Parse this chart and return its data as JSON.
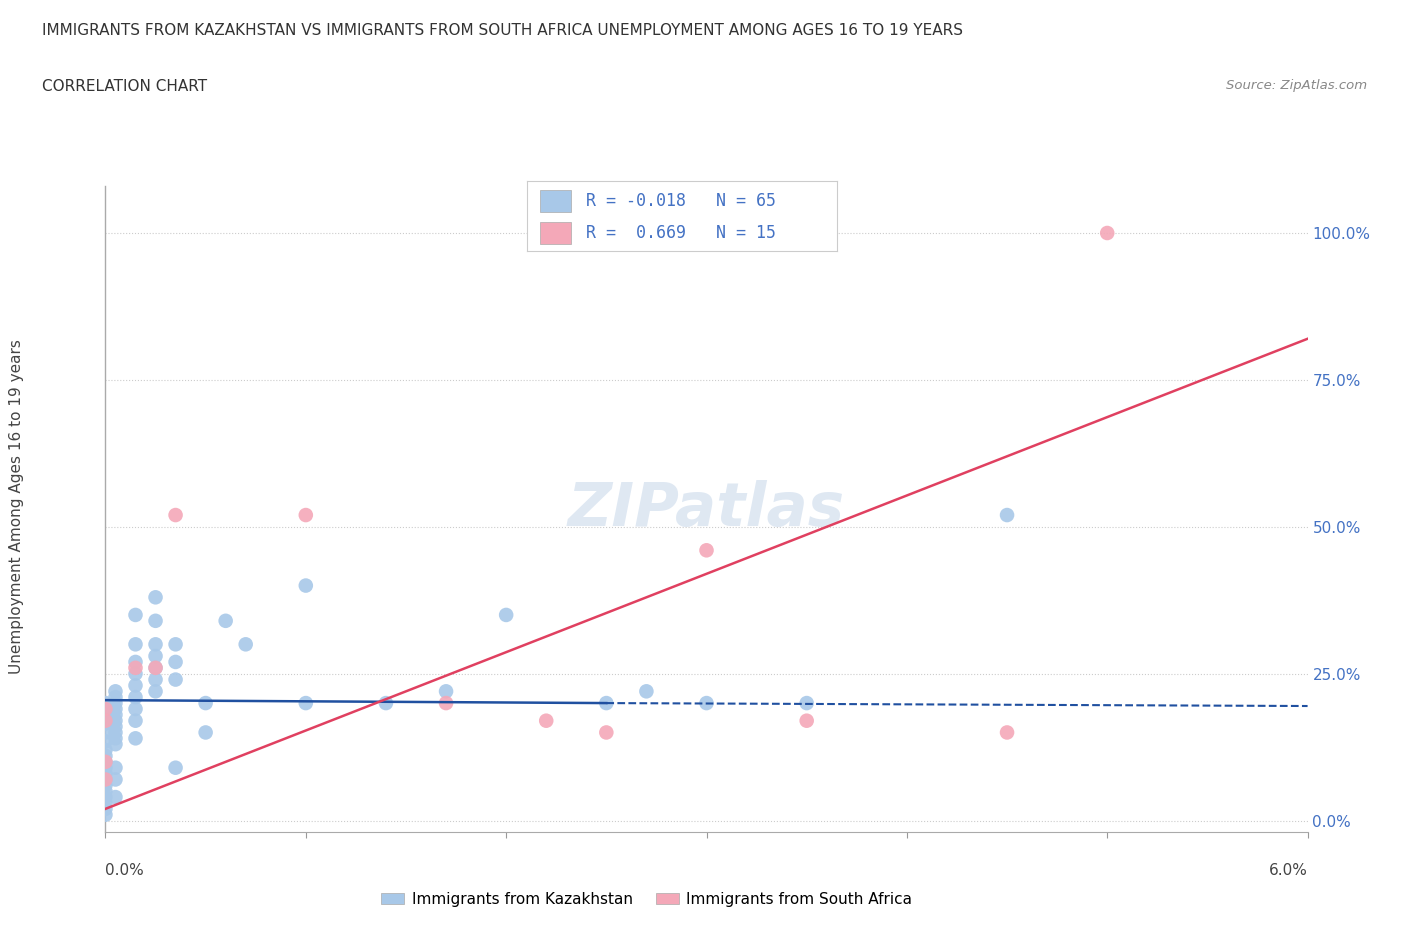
{
  "title_line1": "IMMIGRANTS FROM KAZAKHSTAN VS IMMIGRANTS FROM SOUTH AFRICA UNEMPLOYMENT AMONG AGES 16 TO 19 YEARS",
  "title_line2": "CORRELATION CHART",
  "source": "Source: ZipAtlas.com",
  "ylabel": "Unemployment Among Ages 16 to 19 years",
  "y_right_labels": [
    "0.0%",
    "25.0%",
    "50.0%",
    "75.0%",
    "100.0%"
  ],
  "xlim": [
    0.0,
    6.0
  ],
  "ylim": [
    -2.0,
    108.0
  ],
  "kaz_color": "#a8c8e8",
  "sa_color": "#f4a8b8",
  "kaz_line_color": "#2050a0",
  "sa_line_color": "#e04060",
  "background_color": "#ffffff",
  "kaz_scatter": [
    [
      0.0,
      20.0
    ],
    [
      0.0,
      18.0
    ],
    [
      0.0,
      16.5
    ],
    [
      0.0,
      15.0
    ],
    [
      0.0,
      13.5
    ],
    [
      0.0,
      12.0
    ],
    [
      0.0,
      11.0
    ],
    [
      0.0,
      10.0
    ],
    [
      0.0,
      9.0
    ],
    [
      0.0,
      8.0
    ],
    [
      0.0,
      7.0
    ],
    [
      0.0,
      6.0
    ],
    [
      0.0,
      5.0
    ],
    [
      0.0,
      4.0
    ],
    [
      0.0,
      3.0
    ],
    [
      0.0,
      2.0
    ],
    [
      0.0,
      1.0
    ],
    [
      0.05,
      22.0
    ],
    [
      0.05,
      21.0
    ],
    [
      0.05,
      20.0
    ],
    [
      0.05,
      19.0
    ],
    [
      0.05,
      18.0
    ],
    [
      0.05,
      17.0
    ],
    [
      0.05,
      16.0
    ],
    [
      0.05,
      15.0
    ],
    [
      0.05,
      14.0
    ],
    [
      0.05,
      13.0
    ],
    [
      0.05,
      9.0
    ],
    [
      0.05,
      7.0
    ],
    [
      0.05,
      4.0
    ],
    [
      0.15,
      35.0
    ],
    [
      0.15,
      30.0
    ],
    [
      0.15,
      27.0
    ],
    [
      0.15,
      25.0
    ],
    [
      0.15,
      23.0
    ],
    [
      0.15,
      21.0
    ],
    [
      0.15,
      19.0
    ],
    [
      0.15,
      17.0
    ],
    [
      0.15,
      14.0
    ],
    [
      0.25,
      38.0
    ],
    [
      0.25,
      34.0
    ],
    [
      0.25,
      30.0
    ],
    [
      0.25,
      28.0
    ],
    [
      0.25,
      26.0
    ],
    [
      0.25,
      24.0
    ],
    [
      0.25,
      22.0
    ],
    [
      0.35,
      30.0
    ],
    [
      0.35,
      27.0
    ],
    [
      0.35,
      24.0
    ],
    [
      0.35,
      9.0
    ],
    [
      0.5,
      20.0
    ],
    [
      0.5,
      15.0
    ],
    [
      0.6,
      34.0
    ],
    [
      0.7,
      30.0
    ],
    [
      1.0,
      40.0
    ],
    [
      1.0,
      20.0
    ],
    [
      1.4,
      20.0
    ],
    [
      1.7,
      22.0
    ],
    [
      2.0,
      35.0
    ],
    [
      2.5,
      20.0
    ],
    [
      2.7,
      22.0
    ],
    [
      3.0,
      20.0
    ],
    [
      3.5,
      20.0
    ],
    [
      4.5,
      52.0
    ]
  ],
  "sa_scatter": [
    [
      0.0,
      19.0
    ],
    [
      0.0,
      17.0
    ],
    [
      0.0,
      10.0
    ],
    [
      0.0,
      7.0
    ],
    [
      0.15,
      26.0
    ],
    [
      0.25,
      26.0
    ],
    [
      0.35,
      52.0
    ],
    [
      1.0,
      52.0
    ],
    [
      1.7,
      20.0
    ],
    [
      2.2,
      17.0
    ],
    [
      2.5,
      15.0
    ],
    [
      3.0,
      46.0
    ],
    [
      3.5,
      17.0
    ],
    [
      4.5,
      15.0
    ],
    [
      5.0,
      100.0
    ]
  ],
  "kaz_trendline_solid": [
    [
      0.0,
      20.5
    ],
    [
      2.5,
      20.0
    ]
  ],
  "kaz_trendline_dashed": [
    [
      2.5,
      20.0
    ],
    [
      6.0,
      19.5
    ]
  ],
  "sa_trendline": [
    [
      0.0,
      2.0
    ],
    [
      6.0,
      82.0
    ]
  ]
}
